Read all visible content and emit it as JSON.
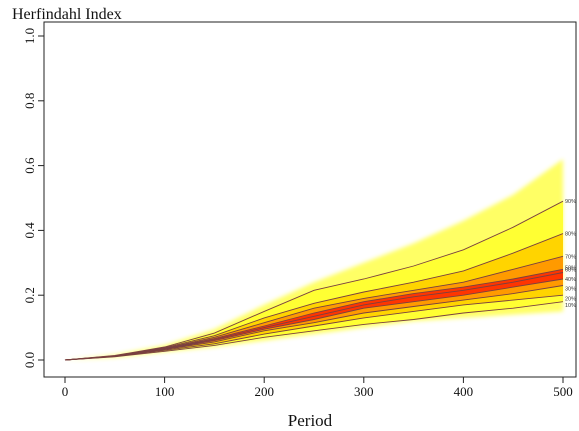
{
  "chart_data": {
    "type": "area",
    "title": "",
    "ylabel": "Herfindahl Index",
    "xlabel": "Period",
    "xlim": [
      0,
      500
    ],
    "ylim": [
      0,
      1.0
    ],
    "x_ticks": [
      "0",
      "100",
      "200",
      "300",
      "400",
      "500"
    ],
    "y_ticks": [
      "0.0",
      "0.2",
      "0.4",
      "0.6",
      "0.8",
      "1.0"
    ],
    "x": [
      0,
      50,
      100,
      150,
      200,
      250,
      300,
      350,
      400,
      450,
      500
    ],
    "band_outer": {
      "lower": [
        0.0,
        0.008,
        0.025,
        0.04,
        0.06,
        0.08,
        0.1,
        0.12,
        0.13,
        0.14,
        0.15
      ],
      "upper": [
        0.0,
        0.016,
        0.045,
        0.095,
        0.17,
        0.24,
        0.3,
        0.36,
        0.43,
        0.51,
        0.62
      ]
    },
    "series": [
      {
        "name": "10%",
        "values": [
          0.0,
          0.01,
          0.027,
          0.045,
          0.07,
          0.09,
          0.11,
          0.125,
          0.145,
          0.16,
          0.18
        ]
      },
      {
        "name": "20%",
        "values": [
          0.0,
          0.011,
          0.03,
          0.05,
          0.08,
          0.105,
          0.13,
          0.15,
          0.17,
          0.185,
          0.2
        ]
      },
      {
        "name": "30%",
        "values": [
          0.0,
          0.011,
          0.032,
          0.056,
          0.09,
          0.115,
          0.145,
          0.165,
          0.185,
          0.205,
          0.23
        ]
      },
      {
        "name": "40%",
        "values": [
          0.0,
          0.012,
          0.033,
          0.06,
          0.095,
          0.125,
          0.16,
          0.18,
          0.2,
          0.225,
          0.25
        ]
      },
      {
        "name": "50%",
        "values": [
          0.0,
          0.012,
          0.034,
          0.063,
          0.1,
          0.135,
          0.17,
          0.195,
          0.215,
          0.24,
          0.27
        ]
      },
      {
        "name": "60%",
        "values": [
          0.0,
          0.012,
          0.035,
          0.066,
          0.105,
          0.145,
          0.18,
          0.205,
          0.225,
          0.25,
          0.28
        ]
      },
      {
        "name": "70%",
        "values": [
          0.0,
          0.013,
          0.036,
          0.07,
          0.115,
          0.16,
          0.19,
          0.215,
          0.24,
          0.28,
          0.32
        ]
      },
      {
        "name": "80%",
        "values": [
          0.0,
          0.013,
          0.038,
          0.075,
          0.13,
          0.175,
          0.21,
          0.24,
          0.275,
          0.33,
          0.39
        ]
      },
      {
        "name": "90%",
        "values": [
          0.0,
          0.014,
          0.04,
          0.083,
          0.15,
          0.215,
          0.25,
          0.29,
          0.34,
          0.41,
          0.49
        ]
      }
    ],
    "label_y": {
      "10%": 0.17,
      "20%": 0.19,
      "30%": 0.22,
      "40%": 0.25,
      "50%": 0.285,
      "60%": 0.28,
      "70%": 0.32,
      "80%": 0.39,
      "90%": 0.49
    },
    "grid": false,
    "legend": "none",
    "colors": {
      "outer": "#ffff33",
      "mid": "#ffd400",
      "inner": "#ff9a00",
      "core": "#ff2a00",
      "line": "#7a4040"
    }
  }
}
